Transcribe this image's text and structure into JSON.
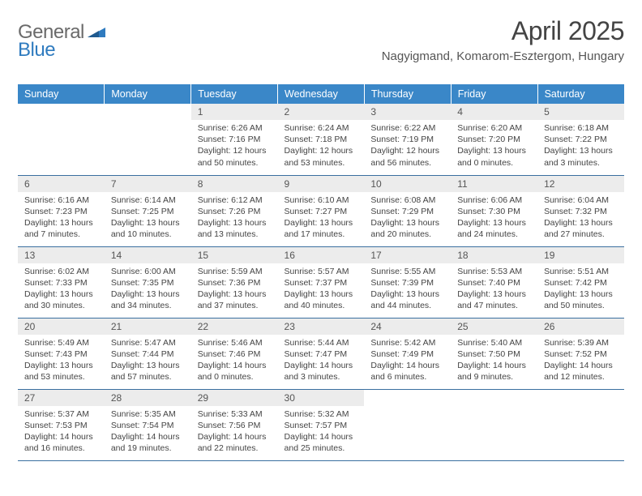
{
  "logo": {
    "word1": "General",
    "word2": "Blue"
  },
  "title": "April 2025",
  "location": "Nagyigmand, Komarom-Esztergom, Hungary",
  "columns": [
    "Sunday",
    "Monday",
    "Tuesday",
    "Wednesday",
    "Thursday",
    "Friday",
    "Saturday"
  ],
  "colors": {
    "header_bg": "#3a87c8",
    "header_text": "#ffffff",
    "daynum_bg": "#ececec",
    "row_border": "#3a6fa0",
    "logo_gray": "#6a6a6a",
    "logo_blue": "#2f7bbf"
  },
  "weeks": [
    [
      null,
      null,
      {
        "n": "1",
        "sr": "Sunrise: 6:26 AM",
        "ss": "Sunset: 7:16 PM",
        "dl": "Daylight: 12 hours and 50 minutes."
      },
      {
        "n": "2",
        "sr": "Sunrise: 6:24 AM",
        "ss": "Sunset: 7:18 PM",
        "dl": "Daylight: 12 hours and 53 minutes."
      },
      {
        "n": "3",
        "sr": "Sunrise: 6:22 AM",
        "ss": "Sunset: 7:19 PM",
        "dl": "Daylight: 12 hours and 56 minutes."
      },
      {
        "n": "4",
        "sr": "Sunrise: 6:20 AM",
        "ss": "Sunset: 7:20 PM",
        "dl": "Daylight: 13 hours and 0 minutes."
      },
      {
        "n": "5",
        "sr": "Sunrise: 6:18 AM",
        "ss": "Sunset: 7:22 PM",
        "dl": "Daylight: 13 hours and 3 minutes."
      }
    ],
    [
      {
        "n": "6",
        "sr": "Sunrise: 6:16 AM",
        "ss": "Sunset: 7:23 PM",
        "dl": "Daylight: 13 hours and 7 minutes."
      },
      {
        "n": "7",
        "sr": "Sunrise: 6:14 AM",
        "ss": "Sunset: 7:25 PM",
        "dl": "Daylight: 13 hours and 10 minutes."
      },
      {
        "n": "8",
        "sr": "Sunrise: 6:12 AM",
        "ss": "Sunset: 7:26 PM",
        "dl": "Daylight: 13 hours and 13 minutes."
      },
      {
        "n": "9",
        "sr": "Sunrise: 6:10 AM",
        "ss": "Sunset: 7:27 PM",
        "dl": "Daylight: 13 hours and 17 minutes."
      },
      {
        "n": "10",
        "sr": "Sunrise: 6:08 AM",
        "ss": "Sunset: 7:29 PM",
        "dl": "Daylight: 13 hours and 20 minutes."
      },
      {
        "n": "11",
        "sr": "Sunrise: 6:06 AM",
        "ss": "Sunset: 7:30 PM",
        "dl": "Daylight: 13 hours and 24 minutes."
      },
      {
        "n": "12",
        "sr": "Sunrise: 6:04 AM",
        "ss": "Sunset: 7:32 PM",
        "dl": "Daylight: 13 hours and 27 minutes."
      }
    ],
    [
      {
        "n": "13",
        "sr": "Sunrise: 6:02 AM",
        "ss": "Sunset: 7:33 PM",
        "dl": "Daylight: 13 hours and 30 minutes."
      },
      {
        "n": "14",
        "sr": "Sunrise: 6:00 AM",
        "ss": "Sunset: 7:35 PM",
        "dl": "Daylight: 13 hours and 34 minutes."
      },
      {
        "n": "15",
        "sr": "Sunrise: 5:59 AM",
        "ss": "Sunset: 7:36 PM",
        "dl": "Daylight: 13 hours and 37 minutes."
      },
      {
        "n": "16",
        "sr": "Sunrise: 5:57 AM",
        "ss": "Sunset: 7:37 PM",
        "dl": "Daylight: 13 hours and 40 minutes."
      },
      {
        "n": "17",
        "sr": "Sunrise: 5:55 AM",
        "ss": "Sunset: 7:39 PM",
        "dl": "Daylight: 13 hours and 44 minutes."
      },
      {
        "n": "18",
        "sr": "Sunrise: 5:53 AM",
        "ss": "Sunset: 7:40 PM",
        "dl": "Daylight: 13 hours and 47 minutes."
      },
      {
        "n": "19",
        "sr": "Sunrise: 5:51 AM",
        "ss": "Sunset: 7:42 PM",
        "dl": "Daylight: 13 hours and 50 minutes."
      }
    ],
    [
      {
        "n": "20",
        "sr": "Sunrise: 5:49 AM",
        "ss": "Sunset: 7:43 PM",
        "dl": "Daylight: 13 hours and 53 minutes."
      },
      {
        "n": "21",
        "sr": "Sunrise: 5:47 AM",
        "ss": "Sunset: 7:44 PM",
        "dl": "Daylight: 13 hours and 57 minutes."
      },
      {
        "n": "22",
        "sr": "Sunrise: 5:46 AM",
        "ss": "Sunset: 7:46 PM",
        "dl": "Daylight: 14 hours and 0 minutes."
      },
      {
        "n": "23",
        "sr": "Sunrise: 5:44 AM",
        "ss": "Sunset: 7:47 PM",
        "dl": "Daylight: 14 hours and 3 minutes."
      },
      {
        "n": "24",
        "sr": "Sunrise: 5:42 AM",
        "ss": "Sunset: 7:49 PM",
        "dl": "Daylight: 14 hours and 6 minutes."
      },
      {
        "n": "25",
        "sr": "Sunrise: 5:40 AM",
        "ss": "Sunset: 7:50 PM",
        "dl": "Daylight: 14 hours and 9 minutes."
      },
      {
        "n": "26",
        "sr": "Sunrise: 5:39 AM",
        "ss": "Sunset: 7:52 PM",
        "dl": "Daylight: 14 hours and 12 minutes."
      }
    ],
    [
      {
        "n": "27",
        "sr": "Sunrise: 5:37 AM",
        "ss": "Sunset: 7:53 PM",
        "dl": "Daylight: 14 hours and 16 minutes."
      },
      {
        "n": "28",
        "sr": "Sunrise: 5:35 AM",
        "ss": "Sunset: 7:54 PM",
        "dl": "Daylight: 14 hours and 19 minutes."
      },
      {
        "n": "29",
        "sr": "Sunrise: 5:33 AM",
        "ss": "Sunset: 7:56 PM",
        "dl": "Daylight: 14 hours and 22 minutes."
      },
      {
        "n": "30",
        "sr": "Sunrise: 5:32 AM",
        "ss": "Sunset: 7:57 PM",
        "dl": "Daylight: 14 hours and 25 minutes."
      },
      null,
      null,
      null
    ]
  ]
}
